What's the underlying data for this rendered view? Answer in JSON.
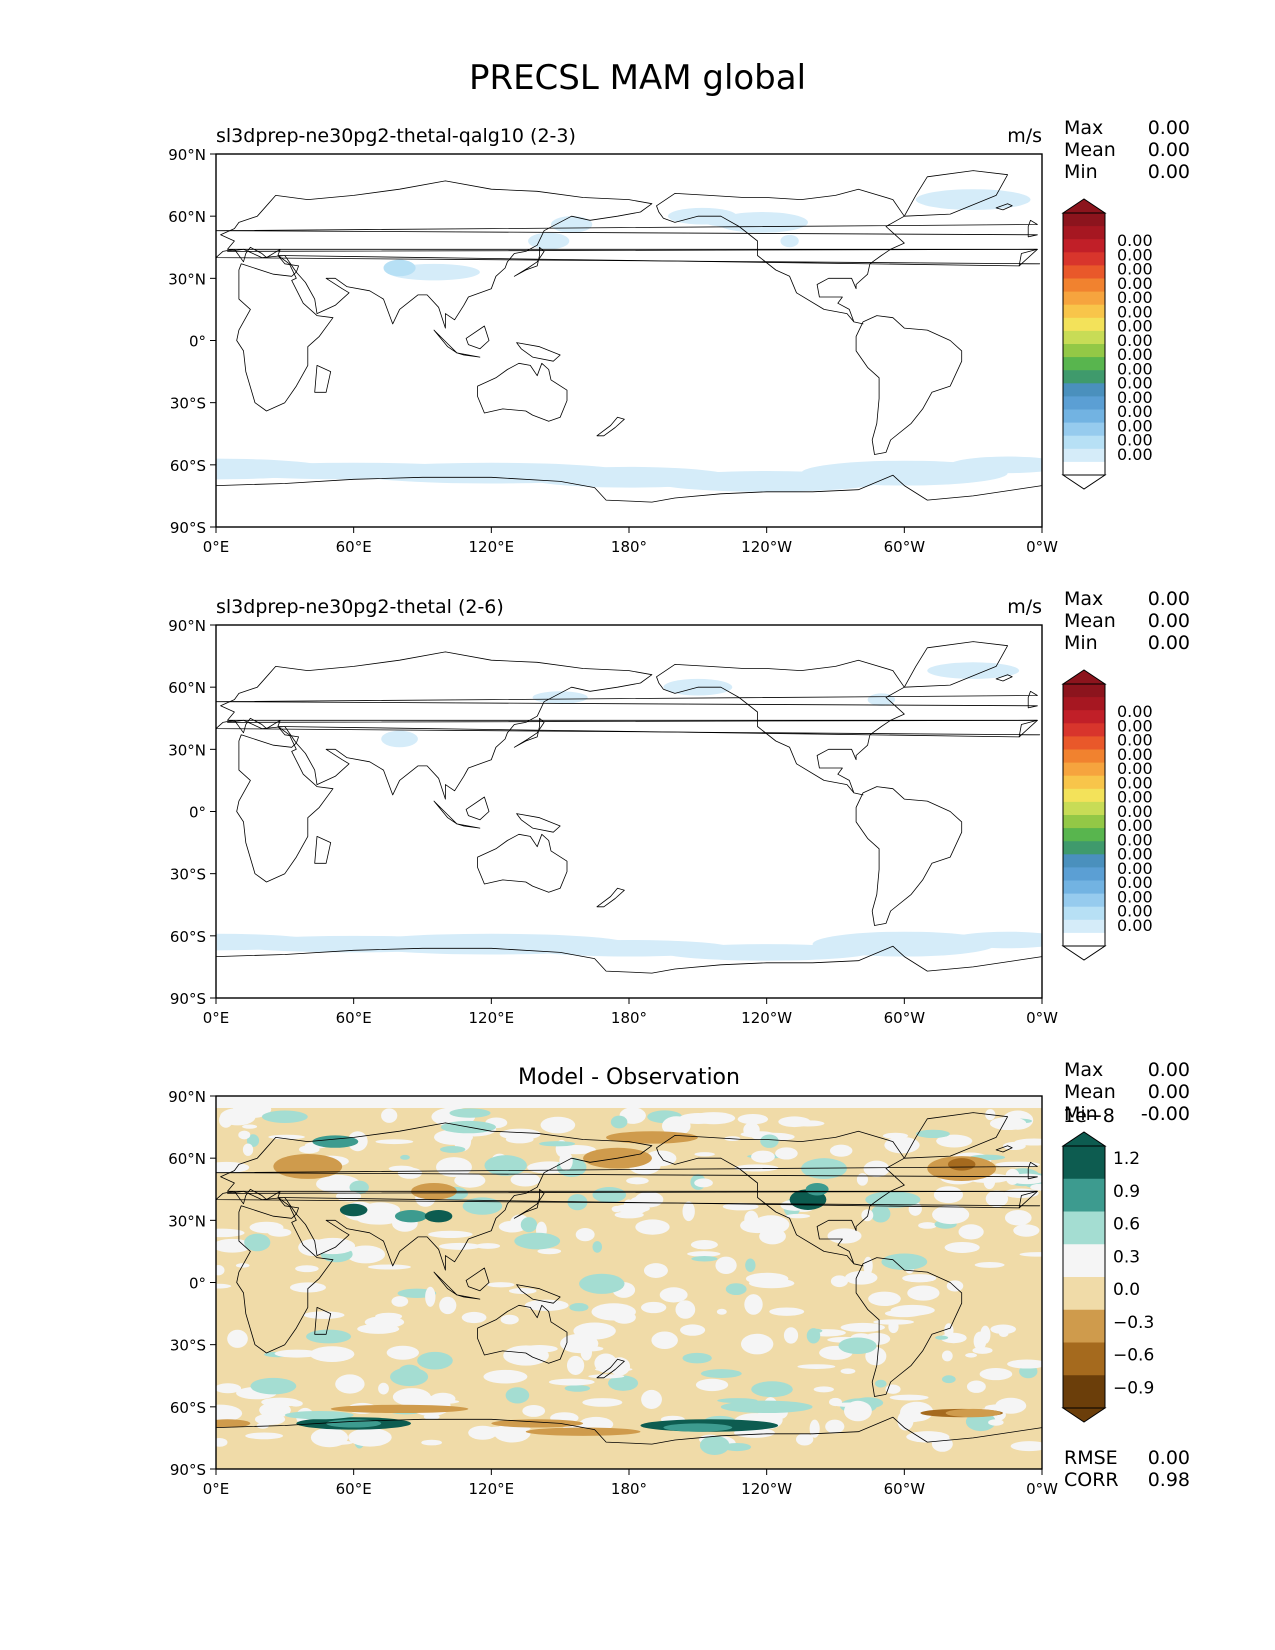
{
  "figure": {
    "title": "PRECSL MAM global"
  },
  "colors": {
    "seq": [
      "#ffffff",
      "#d5ecf9",
      "#b7e0f5",
      "#96cbee",
      "#72b3e2",
      "#5b9fd4",
      "#4a90bd",
      "#3f9a6c",
      "#58b54e",
      "#93c846",
      "#c8dc56",
      "#f3e25a",
      "#f8c54a",
      "#f6a43e",
      "#f1822f",
      "#e9582a",
      "#d8352c",
      "#c11f28",
      "#a61721",
      "#8c141d"
    ],
    "div": [
      "#6b3e0a",
      "#a56a1e",
      "#cf9b4c",
      "#f0dba8",
      "#f5f5f5",
      "#a4ddd2",
      "#3d9b8f",
      "#0d5c50"
    ],
    "land_line": "#000000",
    "seq_fill": "#d5ecf9"
  },
  "axes_common": {
    "yticks": [
      "90°N",
      "60°N",
      "30°N",
      "0°",
      "30°S",
      "60°S",
      "90°S"
    ],
    "xticks": [
      "0°E",
      "60°E",
      "120°E",
      "180°",
      "120°W",
      "60°W",
      "0°W"
    ]
  },
  "panels": [
    {
      "id": "test",
      "title_left": "sl3dprep-ne30pg2-thetal-qalg10 (2-3)",
      "title_center": "",
      "units": "m/s",
      "stats": [
        {
          "label": "Max",
          "value": "0.00"
        },
        {
          "label": "Mean",
          "value": "0.00"
        },
        {
          "label": "Min",
          "value": "0.00"
        }
      ],
      "colorbar": {
        "type": "sequential",
        "exponent": "",
        "labels": [
          "0.00",
          "0.00",
          "0.00",
          "0.00",
          "0.00",
          "0.00",
          "0.00",
          "0.00",
          "0.00",
          "0.00",
          "0.00",
          "0.00",
          "0.00",
          "0.00",
          "0.00",
          "0.00"
        ]
      }
    },
    {
      "id": "ref",
      "title_left": "sl3dprep-ne30pg2-thetal (2-6)",
      "title_center": "",
      "units": "m/s",
      "stats": [
        {
          "label": "Max",
          "value": "0.00"
        },
        {
          "label": "Mean",
          "value": "0.00"
        },
        {
          "label": "Min",
          "value": "0.00"
        }
      ],
      "colorbar": {
        "type": "sequential",
        "exponent": "",
        "labels": [
          "0.00",
          "0.00",
          "0.00",
          "0.00",
          "0.00",
          "0.00",
          "0.00",
          "0.00",
          "0.00",
          "0.00",
          "0.00",
          "0.00",
          "0.00",
          "0.00",
          "0.00",
          "0.00"
        ]
      }
    },
    {
      "id": "diff",
      "title_left": "",
      "title_center": "Model - Observation",
      "units": "",
      "stats": [
        {
          "label": "Max",
          "value": "0.00"
        },
        {
          "label": "Mean",
          "value": "0.00"
        },
        {
          "label": "Min",
          "value": "-0.00"
        }
      ],
      "colorbar": {
        "type": "diverging",
        "exponent": "1e−8",
        "labels": [
          "1.2",
          "0.9",
          "0.6",
          "0.3",
          "0.0",
          "−0.3",
          "−0.6",
          "−0.9"
        ]
      },
      "bottom_stats": [
        {
          "label": "RMSE",
          "value": "0.00"
        },
        {
          "label": "CORR",
          "value": "0.98"
        }
      ]
    }
  ],
  "chart_data": [
    {
      "type": "heatmap",
      "title": "sl3dprep-ne30pg2-thetal-qalg10 (2-3)",
      "units": "m/s",
      "xlim": [
        0,
        360
      ],
      "ylim": [
        -90,
        90
      ],
      "projection": "PlateCarree (central lon 180)",
      "colorbar_levels": 16,
      "max": 0.0,
      "mean": 0.0,
      "min": 0.0
    },
    {
      "type": "heatmap",
      "title": "sl3dprep-ne30pg2-thetal (2-6)",
      "units": "m/s",
      "xlim": [
        0,
        360
      ],
      "ylim": [
        -90,
        90
      ],
      "projection": "PlateCarree (central lon 180)",
      "colorbar_levels": 16,
      "max": 0.0,
      "mean": 0.0,
      "min": 0.0
    },
    {
      "type": "heatmap",
      "title": "Model - Observation",
      "xlim": [
        0,
        360
      ],
      "ylim": [
        -90,
        90
      ],
      "colorbar_scale": "1e-8",
      "colorbar_ticks": [
        1.2,
        0.9,
        0.6,
        0.3,
        0.0,
        -0.3,
        -0.6,
        -0.9
      ],
      "max": 0.0,
      "mean": 0.0,
      "min": -0.0,
      "rmse": 0.0,
      "corr": 0.98
    }
  ]
}
